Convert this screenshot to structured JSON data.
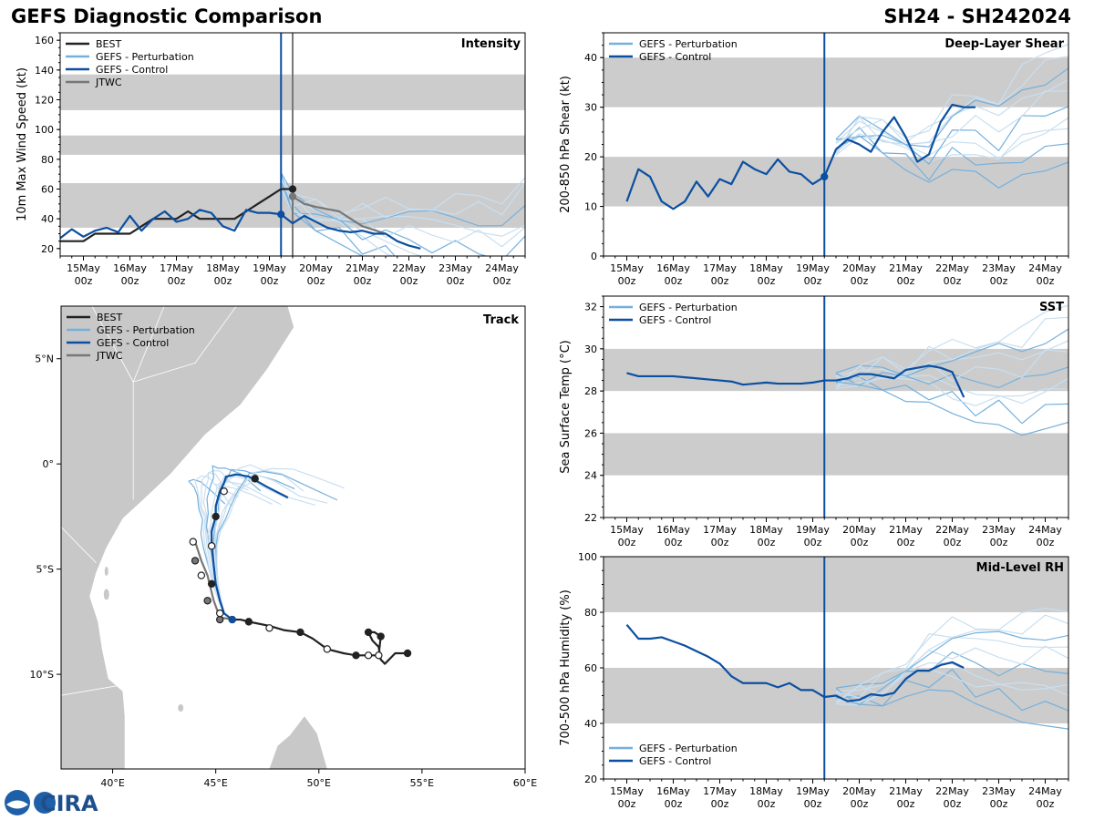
{
  "header": {
    "title_left": "GEFS Diagnostic Comparison",
    "title_right": "SH24 - SH242024"
  },
  "colors": {
    "best": "#222222",
    "perturbation": "#74b0dd",
    "perturbation_light": "#c9dff0",
    "control": "#0b4fa0",
    "jtwc": "#777777",
    "band": "#cccccc",
    "land": "#c8c8c8"
  },
  "legend": {
    "best": "BEST",
    "perturbation": "GEFS - Perturbation",
    "control": "GEFS - Control",
    "jtwc": "JTWC"
  },
  "time_axis": {
    "day_labels": [
      "15May",
      "16May",
      "17May",
      "18May",
      "19May",
      "20May",
      "21May",
      "22May",
      "23May",
      "24May"
    ],
    "hour_label": "00z",
    "init_time_day": 19.25
  },
  "logo": {
    "text": "CIRA"
  },
  "chart_data": [
    {
      "id": "intensity",
      "type": "line",
      "title": "Intensity",
      "ylabel": "10m Max Wind Speed (kt)",
      "ylim": [
        15,
        165
      ],
      "yticks": [
        20,
        40,
        60,
        80,
        100,
        120,
        140,
        160
      ],
      "xlim": [
        14.5,
        24.5
      ],
      "bands": [
        [
          34,
          64
        ],
        [
          83,
          96
        ],
        [
          113,
          137
        ]
      ],
      "vlines": [
        {
          "x": 19.25,
          "series": "control"
        },
        {
          "x": 19.5,
          "series": "jtwc"
        }
      ],
      "series": [
        {
          "name": "BEST",
          "key": "best",
          "x": [
            14.5,
            15.0,
            15.25,
            15.5,
            15.75,
            16.0,
            16.25,
            16.5,
            16.75,
            17.0,
            17.25,
            17.5,
            17.75,
            18.0,
            18.25,
            18.5,
            18.75,
            19.0,
            19.25,
            19.5
          ],
          "y": [
            25,
            25,
            30,
            30,
            30,
            30,
            35,
            40,
            40,
            40,
            45,
            40,
            40,
            40,
            40,
            45,
            50,
            55,
            60,
            60
          ],
          "markers": [
            {
              "x": 19.5,
              "y": 60,
              "filled": true
            }
          ]
        },
        {
          "name": "JTWC",
          "key": "jtwc",
          "x": [
            19.5,
            19.75,
            20.0,
            20.5,
            21.0,
            21.5
          ],
          "y": [
            55,
            50,
            48,
            45,
            35,
            30
          ],
          "markers": [
            {
              "x": 19.5,
              "y": 55,
              "filled": true
            }
          ]
        },
        {
          "name": "GEFS - Control",
          "key": "control",
          "x": [
            14.5,
            14.75,
            15.0,
            15.25,
            15.5,
            15.75,
            16.0,
            16.25,
            16.5,
            16.75,
            17.0,
            17.25,
            17.5,
            17.75,
            18.0,
            18.25,
            18.5,
            18.75,
            19.0,
            19.25,
            19.5,
            19.75,
            20.0,
            20.25,
            20.5,
            20.75,
            21.0,
            21.25,
            21.5,
            21.75,
            22.0,
            22.25
          ],
          "y": [
            27,
            33,
            28,
            32,
            34,
            31,
            42,
            32,
            40,
            45,
            38,
            40,
            46,
            44,
            35,
            32,
            46,
            44,
            44,
            43,
            37,
            42,
            38,
            34,
            32,
            31,
            32,
            30,
            30,
            25,
            22,
            20
          ],
          "markers": [
            {
              "x": 19.25,
              "y": 43,
              "filled": true
            }
          ]
        },
        {
          "name": "GEFS - Perturbation",
          "key": "perturbation",
          "note": "ensemble spread after init",
          "x": [
            19.25,
            19.5,
            20.0,
            20.5,
            21.0,
            21.5,
            22.0,
            22.5,
            23.0,
            23.5,
            24.0,
            24.5
          ],
          "y": [
            66,
            50,
            42,
            38,
            34,
            31,
            28,
            26,
            24,
            22,
            21,
            28
          ]
        }
      ]
    },
    {
      "id": "shear",
      "type": "line",
      "title": "Deep-Layer Shear",
      "ylabel": "200-850 hPa Shear (kt)",
      "ylim": [
        0,
        45
      ],
      "yticks": [
        0,
        10,
        20,
        30,
        40
      ],
      "xlim": [
        14.5,
        24.5
      ],
      "bands": [
        [
          10,
          20
        ],
        [
          30,
          40
        ]
      ],
      "vlines": [
        {
          "x": 19.25,
          "series": "control"
        }
      ],
      "series": [
        {
          "name": "GEFS - Control",
          "key": "control",
          "x": [
            15.0,
            15.25,
            15.5,
            15.75,
            16.0,
            16.25,
            16.5,
            16.75,
            17.0,
            17.25,
            17.5,
            17.75,
            18.0,
            18.25,
            18.5,
            18.75,
            19.0,
            19.25,
            19.5,
            19.75,
            20.0,
            20.25,
            20.5,
            20.75,
            21.0,
            21.25,
            21.5,
            21.75,
            22.0,
            22.25,
            22.5
          ],
          "y": [
            11,
            17.5,
            16,
            11,
            9.5,
            11,
            15,
            12,
            15.5,
            14.5,
            19,
            17.5,
            16.5,
            19.5,
            17,
            16.5,
            14.5,
            16,
            21.5,
            23.5,
            22.5,
            21,
            25,
            28,
            24,
            19,
            20.5,
            27,
            30.5,
            30,
            30
          ],
          "markers": [
            {
              "x": 19.25,
              "y": 16,
              "filled": true
            }
          ]
        },
        {
          "name": "GEFS - Perturbation",
          "key": "perturbation",
          "x": [
            19.5,
            20.0,
            20.5,
            21.0,
            21.5,
            22.0,
            22.5,
            23.0,
            23.5,
            24.0,
            24.5
          ],
          "y": [
            22,
            26,
            24,
            22,
            21,
            25,
            26,
            24,
            28,
            30,
            33
          ]
        }
      ]
    },
    {
      "id": "sst",
      "type": "line",
      "title": "SST",
      "ylabel": "Sea Surface Temp (°C)",
      "ylim": [
        22,
        32.5
      ],
      "yticks": [
        22,
        24,
        26,
        28,
        30,
        32
      ],
      "xlim": [
        14.5,
        24.5
      ],
      "bands": [
        [
          24,
          26
        ],
        [
          28,
          30
        ]
      ],
      "vlines": [
        {
          "x": 19.25,
          "series": "control"
        }
      ],
      "series": [
        {
          "name": "GEFS - Control",
          "key": "control",
          "x": [
            15.0,
            15.25,
            15.5,
            15.75,
            16.0,
            16.25,
            16.5,
            16.75,
            17.0,
            17.25,
            17.5,
            17.75,
            18.0,
            18.25,
            18.5,
            18.75,
            19.0,
            19.25,
            19.5,
            19.75,
            20.0,
            20.25,
            20.5,
            20.75,
            21.0,
            21.25,
            21.5,
            21.75,
            22.0,
            22.25
          ],
          "y": [
            28.85,
            28.7,
            28.7,
            28.7,
            28.7,
            28.65,
            28.6,
            28.55,
            28.5,
            28.45,
            28.3,
            28.35,
            28.4,
            28.35,
            28.35,
            28.35,
            28.4,
            28.5,
            28.5,
            28.6,
            28.8,
            28.8,
            28.7,
            28.6,
            29.0,
            29.1,
            29.2,
            29.1,
            28.9,
            27.7
          ]
        },
        {
          "name": "GEFS - Perturbation",
          "key": "perturbation",
          "x": [
            19.5,
            20.0,
            20.5,
            21.0,
            21.5,
            22.0,
            22.5,
            23.0,
            23.5,
            24.0,
            24.5
          ],
          "y": [
            28.5,
            28.7,
            28.8,
            28.6,
            28.9,
            28.7,
            28.6,
            28.8,
            28.6,
            29.2,
            29.8
          ]
        }
      ]
    },
    {
      "id": "rh",
      "type": "line",
      "title": "Mid-Level RH",
      "ylabel": "700-500 hPa Humidity (%)",
      "ylim": [
        20,
        100
      ],
      "yticks": [
        20,
        40,
        60,
        80,
        100
      ],
      "xlim": [
        14.5,
        24.5
      ],
      "bands": [
        [
          40,
          60
        ],
        [
          80,
          100
        ]
      ],
      "vlines": [
        {
          "x": 19.25,
          "series": "control"
        }
      ],
      "series": [
        {
          "name": "GEFS - Control",
          "key": "control",
          "x": [
            15.0,
            15.25,
            15.5,
            15.75,
            16.0,
            16.25,
            16.5,
            16.75,
            17.0,
            17.25,
            17.5,
            17.75,
            18.0,
            18.25,
            18.5,
            18.75,
            19.0,
            19.25,
            19.5,
            19.75,
            20.0,
            20.25,
            20.5,
            20.75,
            21.0,
            21.25,
            21.5,
            21.75,
            22.0,
            22.25
          ],
          "y": [
            75.5,
            70.5,
            70.5,
            71,
            69.5,
            68,
            66,
            64,
            61.5,
            57,
            54.5,
            54.5,
            54.5,
            53,
            54.5,
            52,
            52,
            49.5,
            50,
            48,
            48.5,
            50.5,
            50,
            51,
            56,
            59,
            59,
            61,
            62,
            60
          ]
        },
        {
          "name": "GEFS - Perturbation",
          "key": "perturbation",
          "x": [
            19.5,
            20.0,
            20.5,
            21.0,
            21.5,
            22.0,
            22.5,
            23.0,
            23.5,
            24.0,
            24.5
          ],
          "y": [
            50,
            50,
            52,
            58,
            63,
            65,
            63,
            62,
            61,
            62,
            63
          ]
        }
      ]
    },
    {
      "id": "track",
      "type": "scatter",
      "title": "Track",
      "xlim": [
        37.5,
        60
      ],
      "ylim": [
        -14.5,
        7.5
      ],
      "xticks": [
        {
          "v": 40,
          "label": "40°E"
        },
        {
          "v": 45,
          "label": "45°E"
        },
        {
          "v": 50,
          "label": "50°E"
        },
        {
          "v": 55,
          "label": "55°E"
        },
        {
          "v": 60,
          "label": "60°E"
        }
      ],
      "yticks": [
        {
          "v": 5,
          "label": "5°N"
        },
        {
          "v": 0,
          "label": "0°"
        },
        {
          "v": -5,
          "label": "5°S"
        },
        {
          "v": -10,
          "label": "10°S"
        }
      ],
      "series": [
        {
          "name": "BEST",
          "key": "best",
          "lon": [
            54.3,
            53.7,
            53.2,
            53.0,
            52.9,
            52.6,
            52.4,
            52.7,
            53.0,
            52.9,
            52.4,
            51.8,
            51.2,
            50.4,
            49.7,
            49.1,
            48.3,
            47.6,
            46.6,
            46.2,
            45.8
          ],
          "lat": [
            -9.0,
            -9.0,
            -9.5,
            -9.3,
            -8.7,
            -8.4,
            -8.0,
            -8.0,
            -8.2,
            -9.1,
            -9.1,
            -9.1,
            -9.0,
            -8.8,
            -8.3,
            -8.0,
            -7.9,
            -7.7,
            -7.5,
            -7.4,
            -7.4
          ],
          "points": [
            {
              "lon": 54.3,
              "lat": -9.0,
              "filled": true
            },
            {
              "lon": 53.0,
              "lat": -8.2,
              "filled": true
            },
            {
              "lon": 52.4,
              "lat": -8.0,
              "filled": true
            },
            {
              "lon": 52.9,
              "lat": -9.1,
              "filled": false
            },
            {
              "lon": 52.4,
              "lat": -9.1,
              "filled": false
            },
            {
              "lon": 51.8,
              "lat": -9.1,
              "filled": true
            },
            {
              "lon": 50.4,
              "lat": -8.8,
              "filled": false
            },
            {
              "lon": 49.1,
              "lat": -8.0,
              "filled": true
            },
            {
              "lon": 47.6,
              "lat": -7.8,
              "filled": false
            },
            {
              "lon": 46.6,
              "lat": -7.5,
              "filled": true
            }
          ]
        },
        {
          "name": "JTWC",
          "key": "jtwc",
          "lon": [
            45.9,
            45.2,
            44.9,
            44.6,
            44.3,
            44.0
          ],
          "lat": [
            -7.4,
            -7.3,
            -6.5,
            -5.3,
            -4.6,
            -3.7
          ],
          "points": [
            {
              "lon": 45.2,
              "lat": -7.4,
              "filled": true
            },
            {
              "lon": 44.6,
              "lat": -6.5,
              "filled": true
            },
            {
              "lon": 44.3,
              "lat": -5.3,
              "filled": false
            },
            {
              "lon": 44.0,
              "lat": -4.6,
              "filled": true
            },
            {
              "lon": 43.9,
              "lat": -3.7,
              "filled": false
            }
          ]
        },
        {
          "name": "GEFS - Control",
          "key": "control",
          "lon": [
            45.8,
            45.4,
            45.2,
            45.0,
            44.9,
            44.8,
            44.8,
            45.0,
            45.0,
            45.2,
            45.4,
            45.5,
            46.0,
            46.6,
            47.5,
            48.5
          ],
          "lat": [
            -7.4,
            -7.1,
            -6.5,
            -5.7,
            -4.8,
            -3.9,
            -3.2,
            -2.5,
            -2.0,
            -1.3,
            -0.9,
            -0.6,
            -0.5,
            -0.6,
            -1.1,
            -1.6
          ],
          "points": [
            {
              "lon": 45.8,
              "lat": -7.4,
              "filled": true
            },
            {
              "lon": 45.2,
              "lat": -7.1,
              "filled": false
            },
            {
              "lon": 44.8,
              "lat": -5.7,
              "filled": true
            },
            {
              "lon": 44.8,
              "lat": -3.9,
              "filled": false
            },
            {
              "lon": 45.0,
              "lat": -2.5,
              "filled": true
            },
            {
              "lon": 45.4,
              "lat": -1.3,
              "filled": false
            },
            {
              "lon": 46.9,
              "lat": -0.7,
              "filled": true
            }
          ]
        }
      ]
    }
  ]
}
